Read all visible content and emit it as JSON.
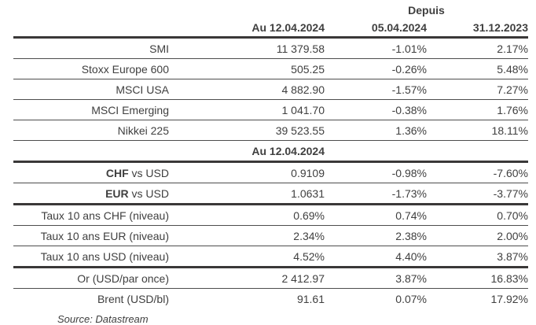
{
  "colors": {
    "text": "#3f3f3f",
    "thick_line": "#3a3838",
    "thin_line": "#4d4d4d",
    "background": "#ffffff"
  },
  "header": {
    "depuis": "Depuis",
    "asof": "Au 12.04.2024",
    "since_1": "05.04.2024",
    "since_2": "31.12.2023"
  },
  "subheader": {
    "asof": "Au 12.04.2024"
  },
  "index_rows": [
    {
      "label": "SMI",
      "value": "11 379.58",
      "chg1": "-1.01%",
      "chg2": "2.17%"
    },
    {
      "label": "Stoxx Europe 600",
      "value": "505.25",
      "chg1": "-0.26%",
      "chg2": "5.48%"
    },
    {
      "label": "MSCI USA",
      "value": "4 882.90",
      "chg1": "-1.57%",
      "chg2": "7.27%"
    },
    {
      "label": "MSCI Emerging",
      "value": "1 041.70",
      "chg1": "-0.38%",
      "chg2": "1.76%"
    },
    {
      "label": "Nikkei 225",
      "value": "39 523.55",
      "chg1": "1.36%",
      "chg2": "18.11%"
    }
  ],
  "fx_rows": [
    {
      "label_bold": "CHF",
      "label_rest": " vs USD",
      "value": "0.9109",
      "chg1": "-0.98%",
      "chg2": "-7.60%"
    },
    {
      "label_bold": "EUR",
      "label_rest": " vs USD",
      "value": "1.0631",
      "chg1": "-1.73%",
      "chg2": "-3.77%"
    }
  ],
  "rate_rows": [
    {
      "label": "Taux 10 ans CHF (niveau)",
      "value": "0.69%",
      "chg1": "0.74%",
      "chg2": "0.70%"
    },
    {
      "label": "Taux 10 ans EUR (niveau)",
      "value": "2.34%",
      "chg1": "2.38%",
      "chg2": "2.00%"
    },
    {
      "label": "Taux 10 ans USD (niveau)",
      "value": "4.52%",
      "chg1": "4.40%",
      "chg2": "3.87%"
    }
  ],
  "commodity_rows": [
    {
      "label": "Or (USD/par once)",
      "value": "2 412.97",
      "chg1": "3.87%",
      "chg2": "16.83%"
    },
    {
      "label": "Brent (USD/bl)",
      "value": "91.61",
      "chg1": "0.07%",
      "chg2": "17.92%"
    }
  ],
  "source": "Source: Datastream"
}
